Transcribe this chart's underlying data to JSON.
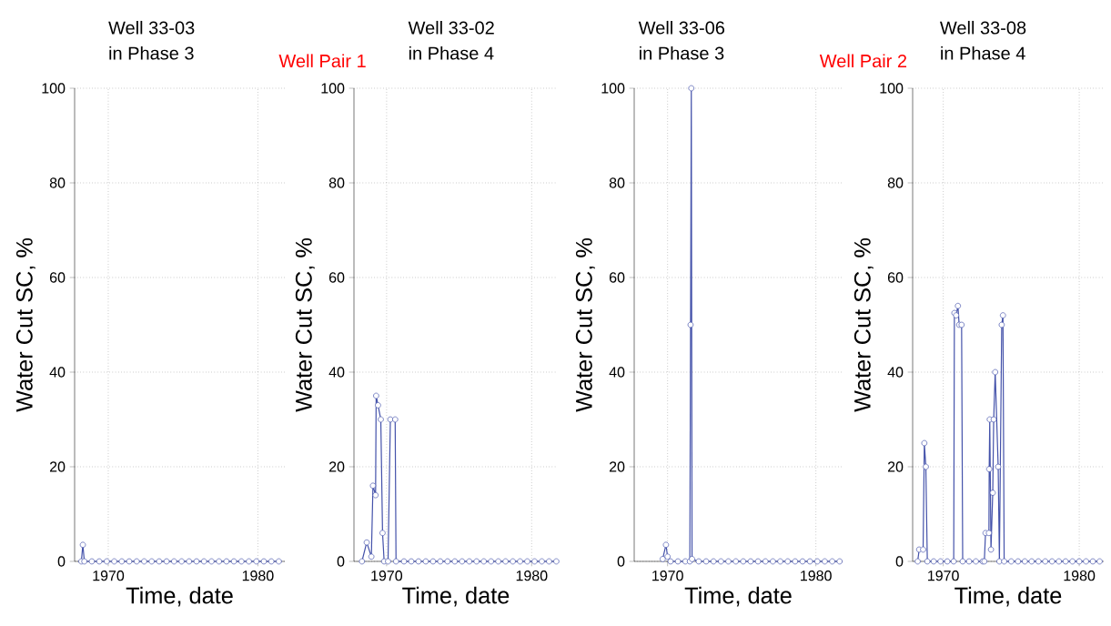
{
  "chart_data": [
    {
      "type": "line",
      "title": "Well 33-03\nin Phase 3",
      "annotations": [
        "Well Pair 1"
      ],
      "xlabel": "Time, date",
      "ylabel": "Water Cut SC, %",
      "color": "#4452aa",
      "marker": "circle",
      "line_style": "solid",
      "grid": true,
      "xlim": [
        1967.75,
        1981.8
      ],
      "ylim": [
        0,
        100
      ],
      "xticks": [
        1970,
        1980
      ],
      "yticks": [
        0,
        20,
        40,
        60,
        80,
        100
      ],
      "x": [
        1968.2,
        1968.3,
        1968.4,
        1968.9,
        1969.4,
        1969.9,
        1970.4,
        1970.9,
        1971.4,
        1971.9,
        1972.4,
        1972.9,
        1973.4,
        1973.9,
        1974.4,
        1974.9,
        1975.4,
        1975.9,
        1976.4,
        1976.9,
        1977.4,
        1977.9,
        1978.4,
        1978.9,
        1979.4,
        1979.9,
        1980.4,
        1980.9,
        1981.4
      ],
      "values": [
        0,
        3.5,
        0,
        0,
        0,
        0,
        0,
        0,
        0,
        0,
        0,
        0,
        0,
        0,
        0,
        0,
        0,
        0,
        0,
        0,
        0,
        0,
        0,
        0,
        0,
        0,
        0,
        0,
        0
      ]
    },
    {
      "type": "line",
      "title": "Well 33-02\nin Phase 4",
      "xlabel": "Time, date",
      "ylabel": "Water Cut SC, %",
      "color": "#4452aa",
      "marker": "circle",
      "line_style": "solid",
      "grid": true,
      "xlim": [
        1967.75,
        1981.8
      ],
      "ylim": [
        0,
        100
      ],
      "xticks": [
        1970,
        1980
      ],
      "yticks": [
        0,
        20,
        40,
        60,
        80,
        100
      ],
      "x": [
        1968.3,
        1968.63,
        1968.95,
        1969.06,
        1969.24,
        1969.28,
        1969.41,
        1969.6,
        1969.72,
        1969.83,
        1970.1,
        1970.26,
        1970.59,
        1970.65,
        1971.2,
        1971.7,
        1972.2,
        1972.7,
        1973.2,
        1973.7,
        1974.2,
        1974.7,
        1975.2,
        1975.7,
        1976.2,
        1976.7,
        1977.2,
        1977.7,
        1978.2,
        1978.7,
        1979.2,
        1979.7,
        1980.2,
        1980.7,
        1981.2,
        1981.7
      ],
      "values": [
        0,
        4,
        1,
        16,
        14,
        35,
        33,
        30,
        6,
        0,
        0,
        30,
        30,
        0,
        0,
        0,
        0,
        0,
        0,
        0,
        0,
        0,
        0,
        0,
        0,
        0,
        0,
        0,
        0,
        0,
        0,
        0,
        0,
        0,
        0,
        0
      ]
    },
    {
      "type": "line",
      "title": "Well 33-06\nin Phase 3",
      "annotations": [
        "Well Pair 2"
      ],
      "xlabel": "Time, date",
      "ylabel": "Water Cut SC, %",
      "color": "#4452aa",
      "marker": "circle",
      "line_style": "solid",
      "grid": true,
      "xlim": [
        1967.75,
        1981.8
      ],
      "ylim": [
        0,
        100
      ],
      "xticks": [
        1970,
        1980
      ],
      "yticks": [
        0,
        20,
        40,
        60,
        80,
        100
      ],
      "x": [
        1969.67,
        1969.89,
        1970,
        1970.2,
        1970.7,
        1971.2,
        1971.5,
        1971.55,
        1971.6,
        1971.65,
        1972.1,
        1972.6,
        1973.1,
        1973.6,
        1974.1,
        1974.6,
        1975.1,
        1975.6,
        1976.1,
        1976.6,
        1977.1,
        1977.6,
        1978.1,
        1978.6,
        1979.1,
        1979.6,
        1980.1,
        1980.6,
        1981.1,
        1981.6
      ],
      "values": [
        0.5,
        3.5,
        1,
        0,
        0,
        0,
        0,
        50,
        100,
        0.5,
        0,
        0,
        0,
        0,
        0,
        0,
        0,
        0,
        0,
        0,
        0,
        0,
        0,
        0,
        0,
        0,
        0,
        0,
        0,
        0
      ]
    },
    {
      "type": "line",
      "title": "Well 33-08\nin Phase 4",
      "xlabel": "Time, date",
      "ylabel": "Water Cut SC, %",
      "color": "#4452aa",
      "marker": "circle",
      "line_style": "solid",
      "grid": true,
      "xlim": [
        1967.75,
        1981.8
      ],
      "ylim": [
        0,
        100
      ],
      "xticks": [
        1970,
        1980
      ],
      "yticks": [
        0,
        20,
        40,
        60,
        80,
        100
      ],
      "x": [
        1968.12,
        1968.23,
        1968.52,
        1968.61,
        1968.72,
        1968.83,
        1969.3,
        1969.8,
        1970.3,
        1970.77,
        1970.82,
        1970.95,
        1971.08,
        1971.17,
        1971.35,
        1971.43,
        1971.9,
        1972.4,
        1972.9,
        1973.02,
        1973.11,
        1973.36,
        1973.38,
        1973.42,
        1973.51,
        1973.64,
        1973.71,
        1973.82,
        1974.04,
        1974.13,
        1974.3,
        1974.39,
        1974.48,
        1975,
        1975.5,
        1976,
        1976.5,
        1977,
        1977.5,
        1978,
        1978.5,
        1979,
        1979.5,
        1980,
        1980.5,
        1981,
        1981.5
      ],
      "values": [
        0,
        2.5,
        2.5,
        25,
        20,
        0,
        0,
        0,
        0,
        0,
        52.5,
        52,
        54,
        50,
        50,
        0,
        0,
        0,
        0,
        0,
        6,
        6,
        19.5,
        30,
        2.5,
        14.5,
        30,
        40,
        20,
        0,
        50,
        52,
        0,
        0,
        0,
        0,
        0,
        0,
        0,
        0,
        0,
        0,
        0,
        0,
        0,
        0,
        0
      ]
    }
  ]
}
